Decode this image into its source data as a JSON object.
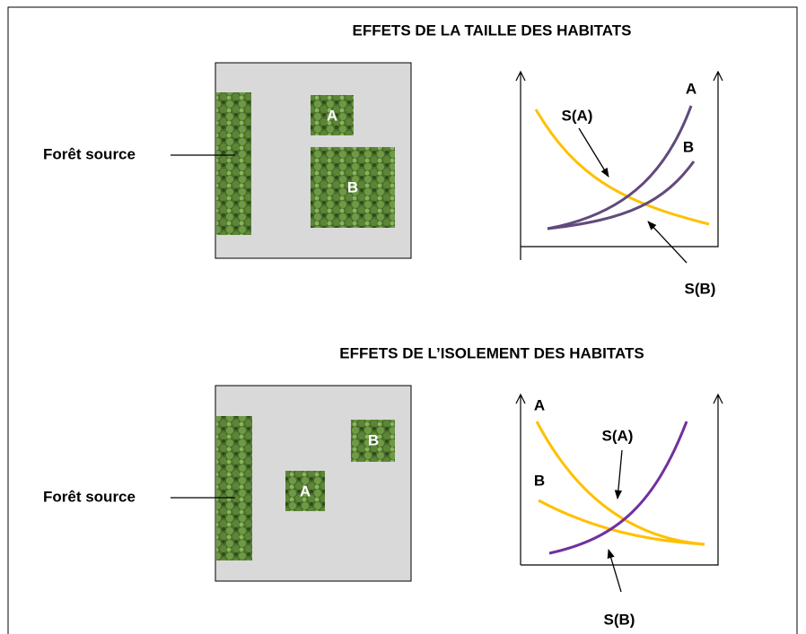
{
  "panels": [
    {
      "title": "EFFETS DE LA TAILLE DES HABITATS",
      "source_label": "Forêt source",
      "patches": [
        "A",
        "B"
      ],
      "curve_labels": [
        "A",
        "B"
      ],
      "rate_labels": [
        "S(A)",
        "S(B)"
      ]
    },
    {
      "title": "EFFETS DE L’ISOLEMENT DES HABITATS",
      "source_label": "Forêt source",
      "patches": [
        "A",
        "B"
      ],
      "curve_labels": [
        "A",
        "B"
      ],
      "rate_labels": [
        "S(A)",
        "S(B)"
      ]
    }
  ]
}
